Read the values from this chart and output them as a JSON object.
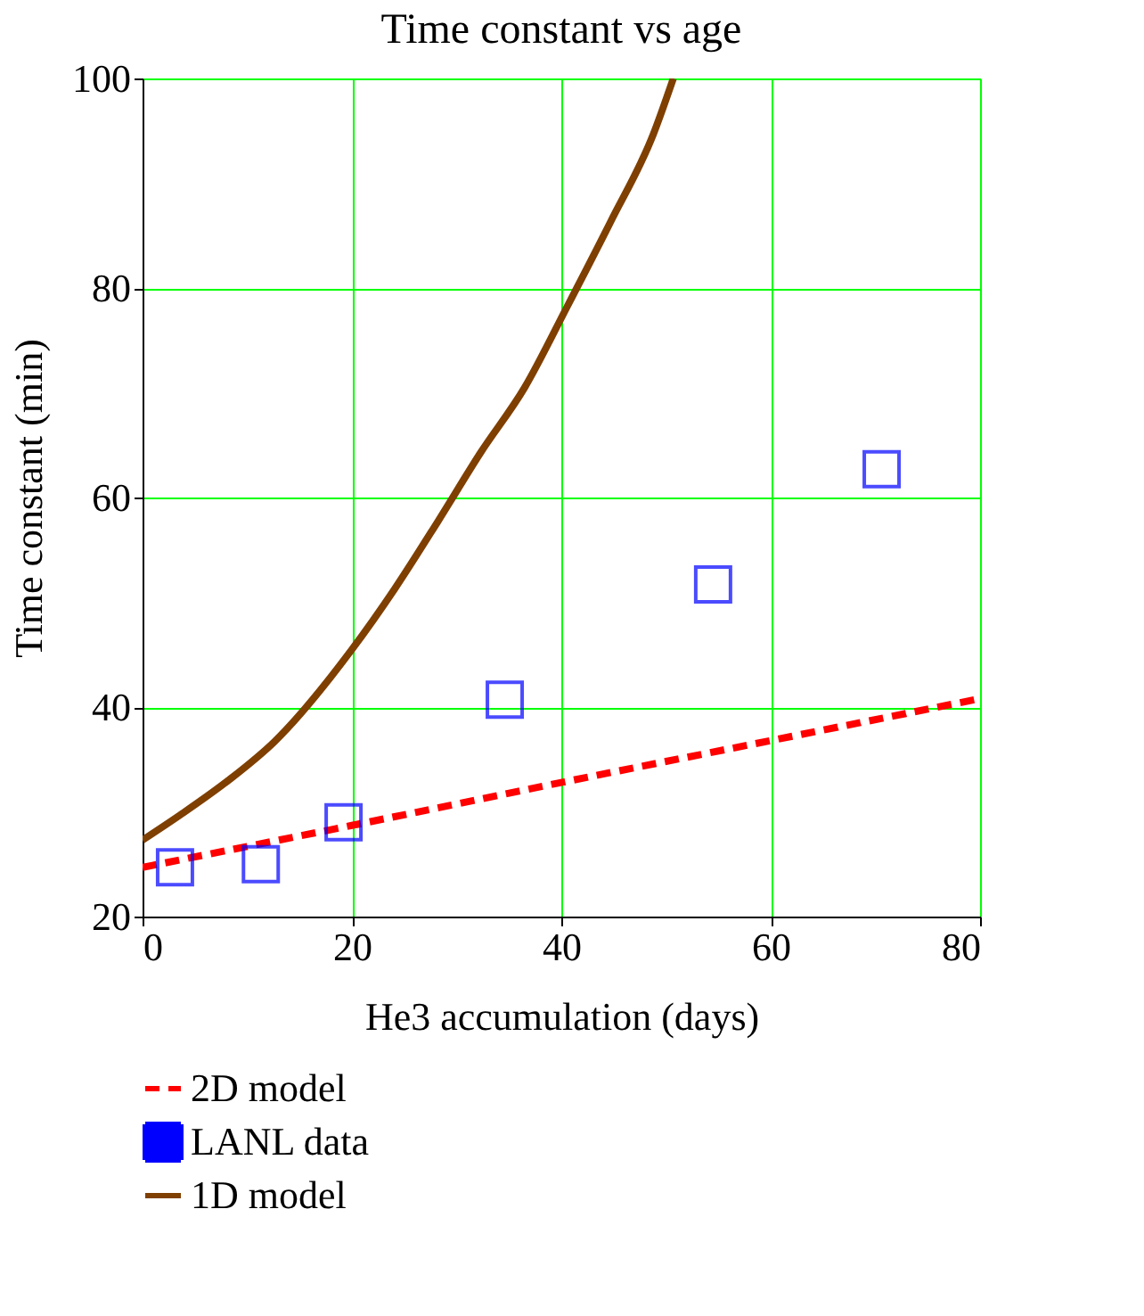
{
  "chart_data": {
    "type": "line",
    "title": "Time constant vs age",
    "xlabel": "He3 accumulation (days)",
    "ylabel": "Time constant (min)",
    "xlim": [
      0,
      80
    ],
    "xticks": [
      0,
      20,
      40,
      60,
      80
    ],
    "ylim": [
      20,
      100
    ],
    "yticks": [
      20,
      40,
      60,
      80,
      100
    ],
    "grid": true,
    "legend": "bottom",
    "series": [
      {
        "name": "2D model",
        "line_style": "dashed",
        "color": "#ff0000",
        "x": [
          0,
          20,
          40,
          60,
          80
        ],
        "values": [
          24.7,
          28.7,
          32.8,
          36.8,
          40.8
        ]
      },
      {
        "name": "LANL data",
        "type": "scatter",
        "marker": "square",
        "color": "#0000ff",
        "x": [
          3.1,
          11.3,
          19.2,
          34.6,
          54.5,
          70.6
        ],
        "values": [
          24.7,
          25,
          29,
          40.7,
          51.7,
          62.7
        ]
      },
      {
        "name": "1D model",
        "line_style": "solid",
        "color": "#7f3f00",
        "x": [
          0,
          3.6,
          8.2,
          12.6,
          20,
          24.1,
          28.2,
          32.3,
          36.5,
          40.6,
          44.7,
          48.8,
          50.7
        ],
        "values": [
          27.3,
          29.7,
          33,
          36.7,
          45.5,
          51.3,
          57.7,
          64.3,
          70.5,
          78.3,
          86.3,
          94.7,
          100
        ]
      }
    ]
  }
}
